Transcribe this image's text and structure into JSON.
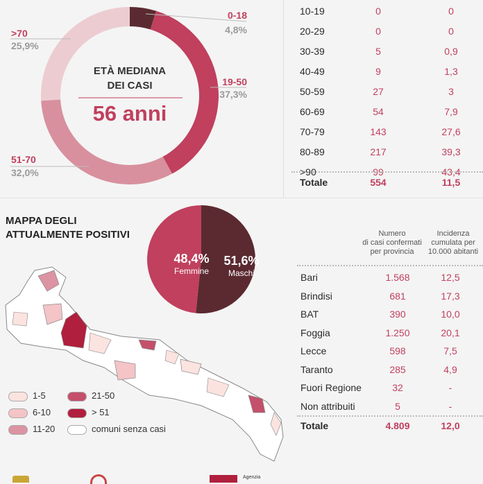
{
  "age_donut": {
    "center_title_line1": "ETÀ MEDIANA",
    "center_title_line2": "DEI CASI",
    "median": "56 anni",
    "segments": [
      {
        "label": "0-18",
        "pct": "4,8%",
        "value": 4.8,
        "color": "#5b2a31"
      },
      {
        "label": "19-50",
        "pct": "37,3%",
        "value": 37.3,
        "color": "#c0405e"
      },
      {
        "label": "51-70",
        "pct": "32,0%",
        "value": 32.0,
        "color": "#d8909e"
      },
      {
        "label": ">70",
        "pct": "25,9%",
        "value": 25.9,
        "color": "#ecccd1"
      }
    ]
  },
  "age_table": {
    "rows": [
      {
        "age": "10-19",
        "a": "0",
        "b": "0"
      },
      {
        "age": "20-29",
        "a": "0",
        "b": "0"
      },
      {
        "age": "30-39",
        "a": "5",
        "b": "0,9"
      },
      {
        "age": "40-49",
        "a": "9",
        "b": "1,3"
      },
      {
        "age": "50-59",
        "a": "27",
        "b": "3"
      },
      {
        "age": "60-69",
        "a": "54",
        "b": "7,9"
      },
      {
        "age": "70-79",
        "a": "143",
        "b": "27,6"
      },
      {
        "age": "80-89",
        "a": "217",
        "b": "39,3"
      },
      {
        "age": ">90",
        "a": "99",
        "b": "43,4"
      }
    ],
    "total": {
      "age": "Totale",
      "a": "554",
      "b": "11,5"
    }
  },
  "map": {
    "title_line1": "MAPPA DEGLI",
    "title_line2": "ATTUALMENTE POSITIVI",
    "legend": [
      {
        "label": "1-5",
        "color": "#fbe3df"
      },
      {
        "label": "6-10",
        "color": "#f4c4c6"
      },
      {
        "label": "11-20",
        "color": "#dc93a3"
      },
      {
        "label": "21-50",
        "color": "#c4506b"
      },
      {
        "label": "> 51",
        "color": "#b01f3d"
      },
      {
        "label": "comuni senza casi",
        "color": "#ffffff"
      }
    ]
  },
  "sex_pie": {
    "female": {
      "pct": "48,4%",
      "label": "Femmine",
      "value": 48.4,
      "color": "#c0405e"
    },
    "male": {
      "pct": "51,6%",
      "label": "Maschi",
      "value": 51.6,
      "color": "#5b2a31"
    }
  },
  "province_table": {
    "header_cases": [
      "Numero",
      "di casi confermati",
      "per provincia"
    ],
    "header_incidence": [
      "Incidenza",
      "cumulata per",
      "10.000 abitanti"
    ],
    "rows": [
      {
        "name": "Bari",
        "cases": "1.568",
        "inc": "12,5"
      },
      {
        "name": "Brindisi",
        "cases": "681",
        "inc": "17,3"
      },
      {
        "name": "BAT",
        "cases": "390",
        "inc": "10,0"
      },
      {
        "name": "Foggia",
        "cases": "1.250",
        "inc": "20,1"
      },
      {
        "name": "Lecce",
        "cases": "598",
        "inc": "7,5"
      },
      {
        "name": "Taranto",
        "cases": "285",
        "inc": "4,9"
      },
      {
        "name": "Fuori Regione",
        "cases": "32",
        "inc": "-"
      },
      {
        "name": "Non attribuiti",
        "cases": "5",
        "inc": "-"
      }
    ],
    "total": {
      "name": "Totale",
      "cases": "4.809",
      "inc": "12,0"
    }
  },
  "footer": {
    "agency_text": "Agenzia"
  }
}
